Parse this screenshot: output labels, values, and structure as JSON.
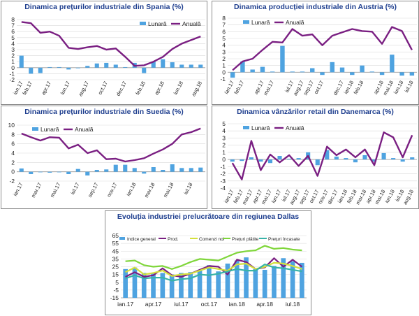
{
  "colors": {
    "title": "#1f3f8f",
    "bars": "#4fa3e0",
    "line": "#7a1f82",
    "grid": "#d9d9d9"
  },
  "chart_data": [
    {
      "type": "bar+line",
      "title": "Dinamica prețurilor industriale din Spania (%)",
      "legend": [
        "Lunară",
        "Anuală"
      ],
      "legend_position": "top-right",
      "ylim": [
        -2,
        8
      ],
      "yticks": [
        -2,
        -1,
        0,
        1,
        2,
        3,
        4,
        5,
        6,
        7,
        8
      ],
      "categories": [
        "ian.17",
        "feb.17",
        "mar.17",
        "apr.17",
        "mai.17",
        "iun.17",
        "iul.17",
        "aug.17",
        "sep.17",
        "oct.17",
        "nov.17",
        "dec.17",
        "ian.18",
        "feb.18",
        "mar.18",
        "apr.18",
        "mai.18",
        "iun.18",
        "iul.18",
        "aug.18"
      ],
      "x_labels": [
        "ian.17",
        "feb.17",
        "apr.17",
        "iun.17",
        "aug.17",
        "oct.17",
        "dec.17",
        "feb.18",
        "apr.18",
        "iun.18",
        "aug.18"
      ],
      "bar_series": {
        "name": "Lunară",
        "values": [
          2.0,
          -1.0,
          -0.9,
          0.1,
          0.1,
          -0.3,
          -0.1,
          0.3,
          0.7,
          0.8,
          0.5,
          0.1,
          0.8,
          -0.9,
          1.0,
          1.4,
          0.9,
          0.5,
          0.5,
          0.5
        ]
      },
      "line_series": {
        "name": "Anuală",
        "values": [
          7.6,
          7.4,
          5.8,
          6.0,
          5.3,
          3.3,
          3.1,
          3.4,
          3.6,
          3.0,
          3.2,
          1.8,
          0.3,
          0.4,
          1.0,
          1.8,
          3.1,
          4.0,
          4.6,
          5.2
        ]
      }
    },
    {
      "type": "bar+line",
      "title": "Dinamica producției industriale din Austria (%)",
      "legend": [
        "Lunară",
        "Anuală"
      ],
      "legend_position": "top-left",
      "ylim": [
        -1,
        8
      ],
      "yticks": [
        -1,
        0,
        1,
        2,
        3,
        4,
        5,
        6,
        7,
        8
      ],
      "categories": [
        "ian.17",
        "feb.17",
        "mar.17",
        "apr.17",
        "mai.17",
        "iun.17",
        "iul.17",
        "aug.17",
        "sep.17",
        "oct.17",
        "nov.17",
        "dec.17",
        "ian.18",
        "feb.18",
        "mar.18",
        "apr.18",
        "mai.18",
        "iun.18",
        "iul.18"
      ],
      "x_labels": [
        "ian.17",
        "feb.17",
        "apr.17",
        "mai.17",
        "iul.17",
        "aug.17",
        "sep.17",
        "oct.17",
        "dec.17",
        "ian.18",
        "feb.18",
        "apr.18",
        "mai.18",
        "iun.18",
        "iul.18"
      ],
      "bar_series": {
        "name": "Lunară",
        "values": [
          -0.8,
          1.6,
          0.4,
          0.8,
          0.1,
          3.9,
          0.1,
          0.1,
          0.6,
          -0.4,
          1.5,
          0.7,
          -0.4,
          1.0,
          0.1,
          -0.4,
          2.6,
          -0.5,
          -0.5
        ]
      },
      "line_series": {
        "name": "Anuală",
        "values": [
          0.3,
          1.6,
          2.0,
          3.3,
          4.5,
          4.4,
          6.4,
          5.4,
          5.6,
          4.0,
          5.4,
          5.9,
          6.4,
          6.1,
          6.0,
          4.2,
          6.7,
          6.1,
          3.3
        ]
      }
    },
    {
      "type": "bar+line",
      "title": "Dinamica prețurilor industriale din Suedia (%)",
      "legend": [
        "Lunară",
        "Anuală"
      ],
      "legend_position": "top-left",
      "ylim": [
        -2,
        10
      ],
      "yticks": [
        -2,
        0,
        2,
        4,
        6,
        8,
        10
      ],
      "categories": [
        "ian.17",
        "feb.17",
        "mar.17",
        "apr.17",
        "mai.17",
        "iun.17",
        "iul.17",
        "aug.17",
        "sep.17",
        "oct.17",
        "nov.17",
        "dec.17",
        "ian.18",
        "feb.18",
        "mar.18",
        "apr.18",
        "mai.18",
        "iun.18",
        "iul.18",
        "aug.18"
      ],
      "x_labels": [
        "ian.17",
        "mar.17",
        "mai.17",
        "iul.17",
        "sep.17",
        "nov.17",
        "ian.18",
        "mar.18",
        "mai.18",
        "iul.18"
      ],
      "bar_series": {
        "name": "Lunară",
        "values": [
          0.7,
          -0.5,
          0.0,
          -0.2,
          0.0,
          -0.5,
          0.6,
          -0.8,
          0.4,
          0.5,
          1.5,
          1.5,
          0.8,
          -0.4,
          1.0,
          0.4,
          1.6,
          0.8,
          0.8,
          0.9
        ]
      },
      "line_series": {
        "name": "Anuală",
        "values": [
          8.2,
          7.4,
          6.7,
          7.4,
          7.3,
          5.0,
          5.8,
          4.0,
          4.6,
          2.7,
          2.8,
          2.2,
          2.5,
          2.9,
          3.9,
          4.8,
          6.0,
          8.0,
          8.5,
          9.3
        ]
      }
    },
    {
      "type": "bar+line",
      "title": "Dinamica vânzărilor retail din Danemarca (%)",
      "legend": [
        "Lunară",
        "Anuală"
      ],
      "legend_position": "top-left",
      "ylim": [
        -4,
        5
      ],
      "yticks": [
        -4,
        -3,
        -2,
        -1,
        0,
        1,
        2,
        3,
        4,
        5
      ],
      "categories": [
        "ian.17",
        "feb.17",
        "mar.17",
        "apr.17",
        "mai.17",
        "iun.17",
        "iul.17",
        "aug.17",
        "sep.17",
        "oct.17",
        "nov.17",
        "dec.17",
        "ian.18",
        "feb.18",
        "mar.18",
        "apr.18",
        "mai.18",
        "iun.18",
        "iul.18",
        "aug.18"
      ],
      "x_labels": [
        "ian.17",
        "feb.17",
        "mar.17",
        "apr.17",
        "mai.17",
        "iun.17",
        "iul.17",
        "aug.17",
        "sep.17",
        "oct.17",
        "nov.17",
        "dec.17",
        "ian.18",
        "feb.18",
        "mar.18",
        "apr.18",
        "mai.18",
        "iun.18",
        "iul.18",
        "aug.18"
      ],
      "bar_series": {
        "name": "Lunară",
        "values": [
          -0.3,
          -0.2,
          0.3,
          -0.3,
          -0.5,
          0.5,
          0.1,
          0.2,
          1.0,
          -0.8,
          1.3,
          0.4,
          0.2,
          -0.4,
          0.6,
          -0.3,
          0.9,
          0.2,
          -0.3,
          0.3
        ]
      },
      "line_series": {
        "name": "Anuală",
        "values": [
          -0.5,
          -2.8,
          2.6,
          -1.5,
          0.7,
          -0.4,
          0.6,
          -0.9,
          0.5,
          -2.3,
          1.8,
          0.6,
          1.4,
          0.3,
          1.4,
          -0.8,
          3.8,
          3.1,
          0.3,
          3.4
        ]
      }
    },
    {
      "type": "bar+line",
      "title": "Evoluția industriei prelucrătoare din regiunea Dallas",
      "legend": [
        "Indice general",
        "Prod.",
        "Comenzi noi",
        "Prețuri plătite",
        "Prețuri încasate"
      ],
      "legend_position": "top",
      "ylim": [
        -15,
        65
      ],
      "yticks": [
        -15,
        -5,
        5,
        15,
        25,
        35,
        45,
        55,
        65
      ],
      "categories": [
        "ian.17",
        "feb.17",
        "mar.17",
        "apr.17",
        "mai.17",
        "iun.17",
        "iul.17",
        "aug.17",
        "sep.17",
        "oct.17",
        "nov.17",
        "dec.17",
        "ian.18",
        "feb.18",
        "mar.18",
        "apr.18",
        "mai.18",
        "iun.18",
        "iul.18",
        "aug.18"
      ],
      "x_labels": [
        "ian.17",
        "apr.17",
        "iul.17",
        "oct.17",
        "ian.18",
        "apr.18",
        "iul.18"
      ],
      "series": [
        {
          "name": "Indice general",
          "kind": "bar",
          "values": [
            22,
            24,
            17,
            16,
            17,
            15,
            17,
            18,
            21,
            27,
            19,
            29,
            33,
            37,
            22,
            21,
            26,
            36,
            32,
            30
          ]
        },
        {
          "name": "Prod.",
          "kind": "line",
          "values": [
            12,
            18,
            12,
            14,
            23,
            14,
            12,
            16,
            21,
            26,
            25,
            15,
            34,
            31,
            22,
            24,
            36,
            25,
            34,
            25
          ]
        },
        {
          "name": "Comenzi noi",
          "kind": "line",
          "values": [
            18,
            24,
            15,
            17,
            20,
            13,
            15,
            16,
            20,
            24,
            22,
            20,
            28,
            29,
            22,
            25,
            30,
            29,
            26,
            22
          ]
        },
        {
          "name": "Prețuri plătite",
          "kind": "line",
          "values": [
            32,
            33,
            27,
            25,
            26,
            22,
            26,
            31,
            35,
            34,
            33,
            38,
            43,
            45,
            46,
            52,
            48,
            49,
            47,
            46
          ]
        },
        {
          "name": "Prețuri încasate",
          "kind": "line",
          "values": [
            10,
            14,
            10,
            11,
            11,
            7,
            9,
            10,
            15,
            14,
            16,
            19,
            22,
            20,
            20,
            28,
            24,
            23,
            21,
            19
          ]
        }
      ]
    }
  ]
}
